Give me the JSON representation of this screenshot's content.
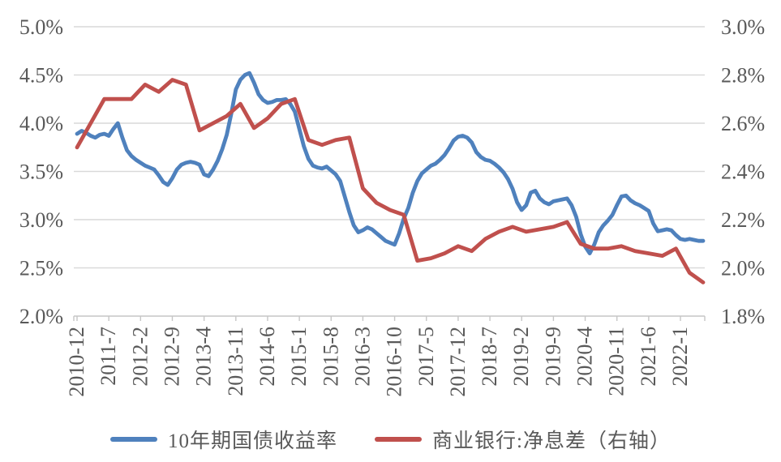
{
  "chart_data": {
    "type": "line",
    "title": "",
    "x_start": "2010-12",
    "x_end": "2022-6",
    "x_unit": "month",
    "grid": "horizontal-on",
    "legend_position": "bottom",
    "style": {
      "background": "#FFFFFF",
      "grid_color": "#D9D9D9",
      "axis_color": "#C6C6C6",
      "text_color": "#595959",
      "blue": "#4F81BD",
      "red": "#C0504D"
    },
    "left_axis": {
      "min": 2.0,
      "max": 5.0,
      "step": 0.5,
      "labels": [
        "5.0%",
        "4.5%",
        "4.0%",
        "3.5%",
        "3.0%",
        "2.5%",
        "2.0%"
      ]
    },
    "right_axis": {
      "min": 1.8,
      "max": 3.0,
      "step": 0.2,
      "labels": [
        "3.0%",
        "2.8%",
        "2.6%",
        "2.4%",
        "2.2%",
        "2.0%",
        "1.8%"
      ]
    },
    "x_ticks": [
      {
        "label": "2010-12",
        "month": 0
      },
      {
        "label": "2011-7",
        "month": 7
      },
      {
        "label": "2012-2",
        "month": 14
      },
      {
        "label": "2012-9",
        "month": 21
      },
      {
        "label": "2013-4",
        "month": 28
      },
      {
        "label": "2013-11",
        "month": 35
      },
      {
        "label": "2014-6",
        "month": 42
      },
      {
        "label": "2015-1",
        "month": 49
      },
      {
        "label": "2015-8",
        "month": 56
      },
      {
        "label": "2016-3",
        "month": 63
      },
      {
        "label": "2016-10",
        "month": 70
      },
      {
        "label": "2017-5",
        "month": 77
      },
      {
        "label": "2017-12",
        "month": 84
      },
      {
        "label": "2018-7",
        "month": 91
      },
      {
        "label": "2019-2",
        "month": 98
      },
      {
        "label": "2019-9",
        "month": 105
      },
      {
        "label": "2020-4",
        "month": 112
      },
      {
        "label": "2020-11",
        "month": 119
      },
      {
        "label": "2021-6",
        "month": 126
      },
      {
        "label": "2022-1",
        "month": 133
      }
    ],
    "series": [
      {
        "name": "10年期国债收益率",
        "axis": "left",
        "color": "#4F81BD",
        "start": "2010-12",
        "interval_months": 1,
        "values": [
          3.89,
          3.92,
          3.9,
          3.87,
          3.85,
          3.88,
          3.89,
          3.87,
          3.94,
          4.0,
          3.85,
          3.72,
          3.66,
          3.62,
          3.59,
          3.56,
          3.54,
          3.52,
          3.46,
          3.39,
          3.36,
          3.43,
          3.52,
          3.57,
          3.59,
          3.6,
          3.59,
          3.57,
          3.47,
          3.45,
          3.52,
          3.61,
          3.73,
          3.88,
          4.1,
          4.35,
          4.45,
          4.5,
          4.52,
          4.42,
          4.3,
          4.24,
          4.21,
          4.22,
          4.24,
          4.24,
          4.25,
          4.2,
          4.12,
          3.94,
          3.76,
          3.63,
          3.56,
          3.54,
          3.53,
          3.55,
          3.51,
          3.47,
          3.4,
          3.24,
          3.08,
          2.94,
          2.87,
          2.89,
          2.92,
          2.9,
          2.86,
          2.82,
          2.78,
          2.76,
          2.74,
          2.86,
          3.01,
          3.12,
          3.28,
          3.4,
          3.48,
          3.52,
          3.56,
          3.58,
          3.62,
          3.67,
          3.74,
          3.82,
          3.86,
          3.87,
          3.85,
          3.8,
          3.7,
          3.65,
          3.62,
          3.61,
          3.58,
          3.54,
          3.49,
          3.42,
          3.32,
          3.18,
          3.1,
          3.15,
          3.28,
          3.3,
          3.22,
          3.18,
          3.16,
          3.19,
          3.2,
          3.21,
          3.22,
          3.15,
          3.03,
          2.85,
          2.72,
          2.65,
          2.74,
          2.87,
          2.94,
          2.99,
          3.05,
          3.15,
          3.24,
          3.25,
          3.2,
          3.17,
          3.15,
          3.12,
          3.09,
          2.96,
          2.88,
          2.89,
          2.9,
          2.89,
          2.84,
          2.8,
          2.79,
          2.8,
          2.79,
          2.78,
          2.78
        ]
      },
      {
        "name": "商业银行:净息差（右轴）",
        "axis": "right",
        "color": "#C0504D",
        "start": "2010-12",
        "interval_months": 3,
        "values": [
          2.5,
          2.6,
          2.7,
          2.7,
          2.7,
          2.76,
          2.73,
          2.78,
          2.76,
          2.57,
          2.6,
          2.63,
          2.68,
          2.58,
          2.62,
          2.68,
          2.7,
          2.53,
          2.51,
          2.53,
          2.54,
          2.33,
          2.27,
          2.24,
          2.22,
          2.03,
          2.04,
          2.06,
          2.09,
          2.07,
          2.12,
          2.15,
          2.17,
          2.15,
          2.16,
          2.17,
          2.19,
          2.1,
          2.08,
          2.08,
          2.09,
          2.07,
          2.06,
          2.05,
          2.08,
          1.98,
          1.94
        ]
      }
    ]
  }
}
